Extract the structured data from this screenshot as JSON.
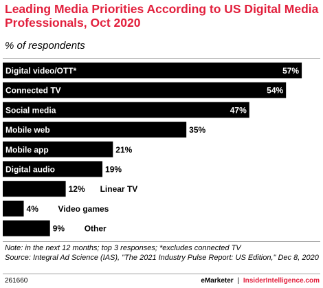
{
  "header": {
    "title": "Leading Media Priorities According to US Digital Media Professionals, Oct 2020",
    "subtitle": "% of respondents"
  },
  "footer": {
    "note": "Note: in the next 12 months; top 3 responses; *excludes connected TV",
    "source": "Source: Integral Ad Science (IAS), \"The 2021 Industry Pulse Report: US Edition,\" Dec 8, 2020",
    "chart_id": "261660",
    "brand_emarketer": "eMarketer",
    "separator": "|",
    "brand_insider": "InsiderIntelligence.com"
  },
  "chart_data": {
    "type": "bar",
    "orientation": "horizontal",
    "title": "Leading Media Priorities According to US Digital Media Professionals, Oct 2020",
    "subtitle": "% of respondents",
    "categories": [
      "Digital video/OTT*",
      "Connected TV",
      "Social media",
      "Mobile web",
      "Mobile app",
      "Digital audio",
      "Linear TV",
      "Video games",
      "Other"
    ],
    "values": [
      57,
      54,
      47,
      35,
      21,
      19,
      12,
      4,
      9
    ],
    "value_labels": [
      "57%",
      "54%",
      "47%",
      "35%",
      "21%",
      "19%",
      "12%",
      "4%",
      "9%"
    ],
    "xlim": [
      0,
      60
    ],
    "bar_color": "#000000",
    "grid": false,
    "legend": "none"
  }
}
